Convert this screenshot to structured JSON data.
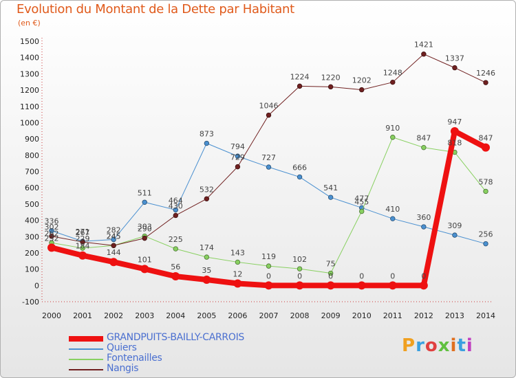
{
  "header": {
    "title": "Evolution du Montant de la Dette par Habitant",
    "unit": "(en €)"
  },
  "logo": {
    "text": "Proxiti",
    "colors": [
      "#f0a020",
      "#3aa0e0",
      "#e04040",
      "#60c040",
      "#e07020",
      "#3aa0e0",
      "#c040c0"
    ]
  },
  "chart_data": {
    "type": "line",
    "title": "Evolution du Montant de la Dette par Habitant",
    "ylabel": "(en €)",
    "xlabel": "",
    "x": [
      "2000",
      "2001",
      "2002",
      "2003",
      "2004",
      "2005",
      "2006",
      "2007",
      "2008",
      "2009",
      "2010",
      "2011",
      "2012",
      "2013",
      "2014"
    ],
    "ylim": [
      -100,
      1500
    ],
    "yticks": [
      -100,
      0,
      100,
      200,
      300,
      400,
      500,
      600,
      700,
      800,
      900,
      1000,
      1100,
      1200,
      1300,
      1400,
      1500
    ],
    "grid": false,
    "legend": "bottom-left",
    "series": [
      {
        "name": "GRANDPUITS-BAILLY-CARROIS",
        "color": "#ee1111",
        "width": 8,
        "values": [
          232,
          184,
          144,
          101,
          56,
          35,
          12,
          0,
          0,
          0,
          0,
          0,
          0,
          947,
          847
        ]
      },
      {
        "name": "Quiers",
        "color": "#4a90d0",
        "width": 1,
        "values": [
          336,
          271,
          282,
          511,
          464,
          873,
          794,
          727,
          666,
          541,
          477,
          410,
          360,
          309,
          256
        ]
      },
      {
        "name": "Fontenailles",
        "color": "#88d060",
        "width": 1,
        "values": [
          262,
          229,
          245,
          303,
          225,
          174,
          143,
          119,
          102,
          75,
          455,
          910,
          847,
          818,
          578
        ]
      },
      {
        "name": "Nangis",
        "color": "#702020",
        "width": 1,
        "values": [
          302,
          267,
          245,
          290,
          430,
          532,
          729,
          1046,
          1224,
          1220,
          1202,
          1248,
          1421,
          1337,
          1246
        ]
      }
    ]
  }
}
